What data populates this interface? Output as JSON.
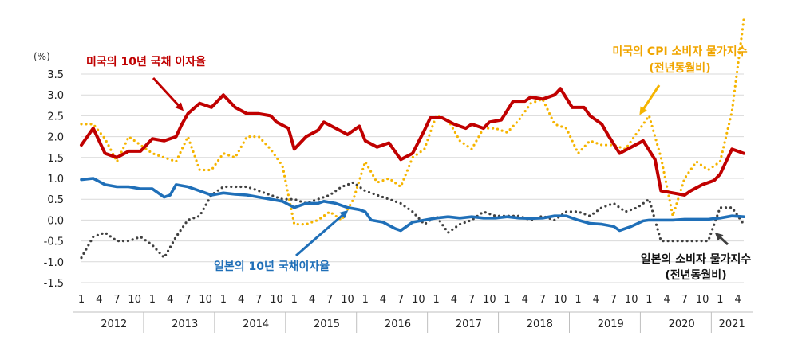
{
  "chart_data": {
    "type": "line",
    "unit_label": "(%)",
    "ylim": [
      -1.5,
      3.5
    ],
    "yticks": [
      "3.5",
      "3.0",
      "2.5",
      "2.0",
      "1.5",
      "1.0",
      "0.5",
      "0.0",
      "-0.5",
      "-1.0",
      "-1.5"
    ],
    "month_labels": [
      "1",
      "4",
      "7",
      "10"
    ],
    "month_labels_last_year": [
      "1",
      "4"
    ],
    "years": [
      "2012",
      "2013",
      "2014",
      "2015",
      "2016",
      "2017",
      "2018",
      "2019",
      "2020",
      "2021"
    ],
    "x_start": "2012-01",
    "x_end": "2021-05",
    "grid": true,
    "annotations": {
      "us_yield": "미국의 10년 국채 이자율",
      "us_cpi_line1": "미국의 CPI 소비자 물가지수",
      "us_cpi_line2": "(전년동월비)",
      "jp_yield": "일본의 10년 국채이자율",
      "jp_cpi_line1": "일본의 소비자 물가지수",
      "jp_cpi_line2": "(전년동월비)"
    },
    "colors": {
      "us_yield": "#c00000",
      "us_cpi": "#f5b400",
      "jp_yield": "#1f6fb8",
      "jp_cpi": "#404040",
      "us_yield_text": "#c00000",
      "us_cpi_text": "#f0a500",
      "jp_yield_text": "#1f6fb8",
      "jp_cpi_text": "#111111"
    },
    "series": [
      {
        "key": "us_yield",
        "style": "solid",
        "points": [
          [
            "2012-01",
            1.8
          ],
          [
            "2012-03",
            2.2
          ],
          [
            "2012-05",
            1.6
          ],
          [
            "2012-07",
            1.5
          ],
          [
            "2012-09",
            1.65
          ],
          [
            "2012-11",
            1.65
          ],
          [
            "2013-01",
            1.95
          ],
          [
            "2013-03",
            1.9
          ],
          [
            "2013-05",
            2.0
          ],
          [
            "2013-06",
            2.3
          ],
          [
            "2013-07",
            2.55
          ],
          [
            "2013-09",
            2.8
          ],
          [
            "2013-11",
            2.7
          ],
          [
            "2014-01",
            3.0
          ],
          [
            "2014-03",
            2.7
          ],
          [
            "2014-05",
            2.55
          ],
          [
            "2014-07",
            2.55
          ],
          [
            "2014-09",
            2.5
          ],
          [
            "2014-10",
            2.35
          ],
          [
            "2014-12",
            2.2
          ],
          [
            "2015-01",
            1.7
          ],
          [
            "2015-03",
            2.0
          ],
          [
            "2015-05",
            2.15
          ],
          [
            "2015-06",
            2.35
          ],
          [
            "2015-08",
            2.2
          ],
          [
            "2015-10",
            2.05
          ],
          [
            "2015-12",
            2.25
          ],
          [
            "2016-01",
            1.9
          ],
          [
            "2016-03",
            1.75
          ],
          [
            "2016-05",
            1.85
          ],
          [
            "2016-07",
            1.45
          ],
          [
            "2016-09",
            1.6
          ],
          [
            "2016-11",
            2.15
          ],
          [
            "2016-12",
            2.45
          ],
          [
            "2017-02",
            2.45
          ],
          [
            "2017-04",
            2.3
          ],
          [
            "2017-06",
            2.2
          ],
          [
            "2017-07",
            2.3
          ],
          [
            "2017-09",
            2.2
          ],
          [
            "2017-10",
            2.35
          ],
          [
            "2017-12",
            2.4
          ],
          [
            "2018-02",
            2.85
          ],
          [
            "2018-04",
            2.85
          ],
          [
            "2018-05",
            2.95
          ],
          [
            "2018-07",
            2.9
          ],
          [
            "2018-09",
            3.0
          ],
          [
            "2018-10",
            3.15
          ],
          [
            "2018-12",
            2.7
          ],
          [
            "2019-02",
            2.7
          ],
          [
            "2019-03",
            2.5
          ],
          [
            "2019-05",
            2.3
          ],
          [
            "2019-06",
            2.05
          ],
          [
            "2019-08",
            1.6
          ],
          [
            "2019-10",
            1.75
          ],
          [
            "2019-12",
            1.9
          ],
          [
            "2020-02",
            1.45
          ],
          [
            "2020-03",
            0.7
          ],
          [
            "2020-05",
            0.65
          ],
          [
            "2020-07",
            0.6
          ],
          [
            "2020-08",
            0.7
          ],
          [
            "2020-10",
            0.85
          ],
          [
            "2020-12",
            0.95
          ],
          [
            "2021-01",
            1.1
          ],
          [
            "2021-03",
            1.7
          ],
          [
            "2021-05",
            1.6
          ]
        ]
      },
      {
        "key": "us_cpi",
        "style": "dotted",
        "points": [
          [
            "2012-01",
            2.3
          ],
          [
            "2012-03",
            2.3
          ],
          [
            "2012-05",
            1.95
          ],
          [
            "2012-07",
            1.4
          ],
          [
            "2012-09",
            2.0
          ],
          [
            "2012-11",
            1.8
          ],
          [
            "2013-01",
            1.6
          ],
          [
            "2013-03",
            1.5
          ],
          [
            "2013-05",
            1.4
          ],
          [
            "2013-07",
            2.0
          ],
          [
            "2013-09",
            1.2
          ],
          [
            "2013-11",
            1.2
          ],
          [
            "2014-01",
            1.6
          ],
          [
            "2014-03",
            1.5
          ],
          [
            "2014-05",
            2.0
          ],
          [
            "2014-07",
            2.0
          ],
          [
            "2014-09",
            1.7
          ],
          [
            "2014-11",
            1.3
          ],
          [
            "2015-01",
            -0.1
          ],
          [
            "2015-03",
            -0.1
          ],
          [
            "2015-05",
            0.0
          ],
          [
            "2015-07",
            0.2
          ],
          [
            "2015-09",
            0.0
          ],
          [
            "2015-11",
            0.5
          ],
          [
            "2016-01",
            1.4
          ],
          [
            "2016-03",
            0.9
          ],
          [
            "2016-05",
            1.0
          ],
          [
            "2016-07",
            0.8
          ],
          [
            "2016-09",
            1.5
          ],
          [
            "2016-11",
            1.7
          ],
          [
            "2017-01",
            2.5
          ],
          [
            "2017-03",
            2.4
          ],
          [
            "2017-05",
            1.9
          ],
          [
            "2017-07",
            1.7
          ],
          [
            "2017-09",
            2.2
          ],
          [
            "2017-11",
            2.2
          ],
          [
            "2018-01",
            2.1
          ],
          [
            "2018-03",
            2.4
          ],
          [
            "2018-05",
            2.8
          ],
          [
            "2018-07",
            2.9
          ],
          [
            "2018-09",
            2.3
          ],
          [
            "2018-11",
            2.2
          ],
          [
            "2019-01",
            1.6
          ],
          [
            "2019-03",
            1.9
          ],
          [
            "2019-05",
            1.8
          ],
          [
            "2019-07",
            1.8
          ],
          [
            "2019-09",
            1.7
          ],
          [
            "2019-11",
            2.1
          ],
          [
            "2020-01",
            2.5
          ],
          [
            "2020-03",
            1.5
          ],
          [
            "2020-05",
            0.1
          ],
          [
            "2020-07",
            1.0
          ],
          [
            "2020-09",
            1.4
          ],
          [
            "2020-11",
            1.2
          ],
          [
            "2021-01",
            1.4
          ],
          [
            "2021-03",
            2.6
          ],
          [
            "2021-05",
            4.8
          ]
        ]
      },
      {
        "key": "jp_yield",
        "style": "solid",
        "points": [
          [
            "2012-01",
            0.97
          ],
          [
            "2012-03",
            1.0
          ],
          [
            "2012-05",
            0.85
          ],
          [
            "2012-07",
            0.8
          ],
          [
            "2012-09",
            0.8
          ],
          [
            "2012-11",
            0.75
          ],
          [
            "2013-01",
            0.75
          ],
          [
            "2013-03",
            0.55
          ],
          [
            "2013-04",
            0.6
          ],
          [
            "2013-05",
            0.85
          ],
          [
            "2013-07",
            0.8
          ],
          [
            "2013-09",
            0.7
          ],
          [
            "2013-11",
            0.6
          ],
          [
            "2014-01",
            0.65
          ],
          [
            "2014-03",
            0.62
          ],
          [
            "2014-05",
            0.6
          ],
          [
            "2014-07",
            0.55
          ],
          [
            "2014-09",
            0.5
          ],
          [
            "2014-11",
            0.45
          ],
          [
            "2015-01",
            0.3
          ],
          [
            "2015-03",
            0.4
          ],
          [
            "2015-05",
            0.4
          ],
          [
            "2015-06",
            0.45
          ],
          [
            "2015-08",
            0.4
          ],
          [
            "2015-10",
            0.3
          ],
          [
            "2015-12",
            0.25
          ],
          [
            "2016-01",
            0.2
          ],
          [
            "2016-02",
            0.0
          ],
          [
            "2016-04",
            -0.05
          ],
          [
            "2016-06",
            -0.2
          ],
          [
            "2016-07",
            -0.25
          ],
          [
            "2016-09",
            -0.05
          ],
          [
            "2016-11",
            0.0
          ],
          [
            "2017-01",
            0.05
          ],
          [
            "2017-03",
            0.08
          ],
          [
            "2017-05",
            0.05
          ],
          [
            "2017-07",
            0.08
          ],
          [
            "2017-09",
            0.05
          ],
          [
            "2017-11",
            0.05
          ],
          [
            "2018-01",
            0.08
          ],
          [
            "2018-03",
            0.05
          ],
          [
            "2018-05",
            0.04
          ],
          [
            "2018-07",
            0.05
          ],
          [
            "2018-09",
            0.1
          ],
          [
            "2018-11",
            0.1
          ],
          [
            "2019-01",
            0.0
          ],
          [
            "2019-03",
            -0.08
          ],
          [
            "2019-05",
            -0.1
          ],
          [
            "2019-07",
            -0.15
          ],
          [
            "2019-08",
            -0.25
          ],
          [
            "2019-10",
            -0.15
          ],
          [
            "2019-12",
            -0.02
          ],
          [
            "2020-01",
            0.0
          ],
          [
            "2020-03",
            0.0
          ],
          [
            "2020-05",
            0.0
          ],
          [
            "2020-07",
            0.02
          ],
          [
            "2020-09",
            0.02
          ],
          [
            "2020-11",
            0.02
          ],
          [
            "2021-01",
            0.05
          ],
          [
            "2021-03",
            0.1
          ],
          [
            "2021-05",
            0.08
          ]
        ]
      },
      {
        "key": "jp_cpi",
        "style": "dotted",
        "points": [
          [
            "2012-01",
            -0.9
          ],
          [
            "2012-03",
            -0.4
          ],
          [
            "2012-05",
            -0.3
          ],
          [
            "2012-07",
            -0.5
          ],
          [
            "2012-09",
            -0.5
          ],
          [
            "2012-11",
            -0.4
          ],
          [
            "2013-01",
            -0.6
          ],
          [
            "2013-03",
            -0.9
          ],
          [
            "2013-05",
            -0.4
          ],
          [
            "2013-07",
            0.0
          ],
          [
            "2013-09",
            0.1
          ],
          [
            "2013-11",
            0.6
          ],
          [
            "2014-01",
            0.8
          ],
          [
            "2014-03",
            0.8
          ],
          [
            "2014-05",
            0.8
          ],
          [
            "2014-07",
            0.7
          ],
          [
            "2014-09",
            0.6
          ],
          [
            "2014-11",
            0.5
          ],
          [
            "2015-01",
            0.5
          ],
          [
            "2015-03",
            0.4
          ],
          [
            "2015-05",
            0.5
          ],
          [
            "2015-07",
            0.6
          ],
          [
            "2015-09",
            0.8
          ],
          [
            "2015-11",
            0.9
          ],
          [
            "2016-01",
            0.7
          ],
          [
            "2016-03",
            0.6
          ],
          [
            "2016-05",
            0.5
          ],
          [
            "2016-07",
            0.4
          ],
          [
            "2016-09",
            0.2
          ],
          [
            "2016-11",
            -0.1
          ],
          [
            "2017-01",
            0.1
          ],
          [
            "2017-03",
            -0.3
          ],
          [
            "2017-05",
            -0.1
          ],
          [
            "2017-07",
            0.0
          ],
          [
            "2017-09",
            0.2
          ],
          [
            "2017-11",
            0.1
          ],
          [
            "2018-01",
            0.1
          ],
          [
            "2018-03",
            0.1
          ],
          [
            "2018-05",
            0.0
          ],
          [
            "2018-07",
            0.1
          ],
          [
            "2018-09",
            0.0
          ],
          [
            "2018-11",
            0.2
          ],
          [
            "2019-01",
            0.2
          ],
          [
            "2019-03",
            0.1
          ],
          [
            "2019-05",
            0.3
          ],
          [
            "2019-07",
            0.4
          ],
          [
            "2019-09",
            0.2
          ],
          [
            "2019-11",
            0.3
          ],
          [
            "2020-01",
            0.5
          ],
          [
            "2020-03",
            -0.5
          ],
          [
            "2020-05",
            -0.5
          ],
          [
            "2020-07",
            -0.5
          ],
          [
            "2020-09",
            -0.5
          ],
          [
            "2020-11",
            -0.5
          ],
          [
            "2021-01",
            0.3
          ],
          [
            "2021-03",
            0.3
          ],
          [
            "2021-05",
            -0.1
          ]
        ]
      }
    ]
  }
}
